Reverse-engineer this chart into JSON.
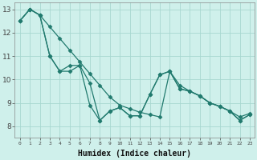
{
  "xlabel": "Humidex (Indice chaleur)",
  "xlim": [
    -0.5,
    23.5
  ],
  "ylim": [
    7.5,
    13.3
  ],
  "yticks": [
    8,
    9,
    10,
    11,
    12,
    13
  ],
  "xticks": [
    0,
    1,
    2,
    3,
    4,
    5,
    6,
    7,
    8,
    9,
    10,
    11,
    12,
    13,
    14,
    15,
    16,
    17,
    18,
    19,
    20,
    21,
    22,
    23
  ],
  "line_color": "#217a6e",
  "bg_color": "#cff0eb",
  "grid_color": "#a8d8d0",
  "series": [
    [
      12.5,
      13.0,
      12.75,
      11.0,
      10.35,
      10.35,
      10.6,
      8.9,
      8.25,
      8.65,
      8.8,
      8.45,
      8.45,
      9.35,
      10.2,
      10.35,
      9.6,
      9.5,
      9.3,
      9.0,
      8.85,
      8.65,
      8.25,
      8.5
    ],
    [
      12.5,
      13.0,
      12.75,
      11.0,
      10.35,
      10.6,
      10.6,
      9.85,
      8.25,
      8.65,
      8.8,
      8.45,
      8.45,
      9.35,
      10.2,
      10.35,
      9.6,
      9.5,
      9.3,
      9.0,
      8.85,
      8.65,
      8.25,
      8.5
    ],
    [
      12.5,
      13.0,
      12.75,
      12.25,
      11.75,
      11.25,
      10.75,
      10.25,
      9.75,
      9.25,
      8.9,
      8.75,
      8.6,
      8.5,
      8.4,
      10.35,
      9.75,
      9.5,
      9.3,
      9.0,
      8.85,
      8.65,
      8.4,
      8.55
    ]
  ]
}
